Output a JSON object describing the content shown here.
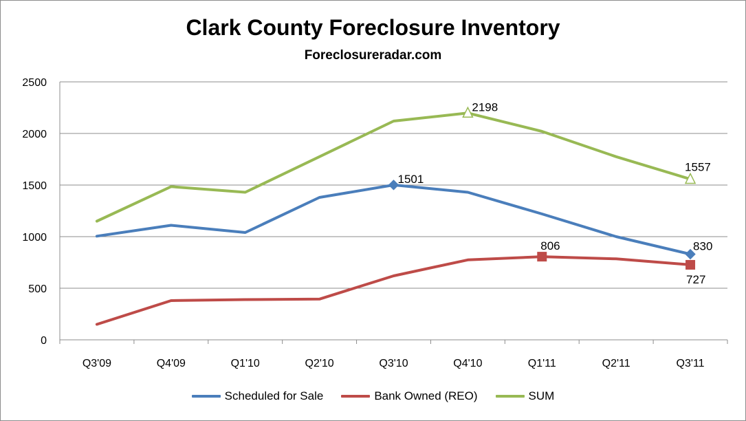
{
  "chart_data": {
    "type": "line",
    "title": "Clark County Foreclosure Inventory",
    "subtitle": "Foreclosureradar.com",
    "xlabel": "",
    "ylabel": "",
    "ylim": [
      0,
      2500
    ],
    "yticks": [
      0,
      500,
      1000,
      1500,
      2000,
      2500
    ],
    "grid": true,
    "legend_position": "bottom",
    "categories": [
      "Q3'09",
      "Q4'09",
      "Q1'10",
      "Q2'10",
      "Q3'10",
      "Q4'10",
      "Q1'11",
      "Q2'11",
      "Q3'11"
    ],
    "series": [
      {
        "name": "Scheduled for Sale",
        "color": "#4a7ebb",
        "marker": "diamond",
        "values": [
          1005,
          1110,
          1040,
          1380,
          1501,
          1430,
          1220,
          1000,
          830
        ],
        "labeled_points": [
          4,
          8
        ]
      },
      {
        "name": "Bank Owned (REO)",
        "color": "#be4b48",
        "marker": "square",
        "values": [
          150,
          380,
          390,
          395,
          620,
          775,
          806,
          785,
          727
        ],
        "labeled_points": [
          6,
          8
        ]
      },
      {
        "name": "SUM",
        "color": "#98b954",
        "marker": "triangle",
        "values": [
          1150,
          1485,
          1430,
          1775,
          2120,
          2198,
          2020,
          1775,
          1557
        ],
        "labeled_points": [
          5,
          8
        ]
      }
    ]
  }
}
